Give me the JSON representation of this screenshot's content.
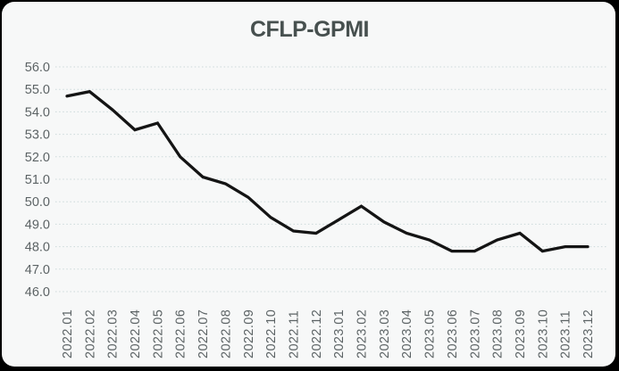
{
  "title": "CFLP-GPMI",
  "colors": {
    "frame": "#000000",
    "card_background": "#f7f8f8",
    "title_color": "#47504f",
    "tick_label_color": "#5c6365",
    "gridline_color": "#ccd9da",
    "line_color": "#141414"
  },
  "chart_data": {
    "type": "line",
    "title": "CFLP-GPMI",
    "categories": [
      "2022.01",
      "2022.02",
      "2022.03",
      "2022.04",
      "2022.05",
      "2022.06",
      "2022.07",
      "2022.08",
      "2022.09",
      "2022.10",
      "2022.11",
      "2022.12",
      "2023.01",
      "2023.02",
      "2023.03",
      "2023.04",
      "2023.05",
      "2023.06",
      "2023.07",
      "2023.08",
      "2023.09",
      "2023.10",
      "2023.11",
      "2023.12"
    ],
    "series": [
      {
        "name": "CFLP-GPMI",
        "values": [
          54.7,
          54.9,
          54.1,
          53.2,
          53.5,
          52.0,
          51.1,
          50.8,
          50.2,
          49.3,
          48.7,
          48.6,
          49.2,
          49.8,
          49.1,
          48.6,
          48.3,
          47.8,
          47.8,
          48.3,
          48.6,
          47.8,
          48.0,
          48.0
        ]
      }
    ],
    "xlabel": "",
    "ylabel": "",
    "ylim": [
      46.0,
      56.0
    ],
    "yticks": [
      56.0,
      55.0,
      54.0,
      53.0,
      52.0,
      51.0,
      50.0,
      49.0,
      48.0,
      47.0,
      46.0
    ],
    "ytick_labels": [
      "56.0",
      "55.0",
      "54.0",
      "53.0",
      "52.0",
      "51.0",
      "50.0",
      "49.0",
      "48.0",
      "47.0",
      "46.0"
    ],
    "xtick_rotation": -90,
    "grid": "horizontal dotted",
    "legend": "none"
  }
}
